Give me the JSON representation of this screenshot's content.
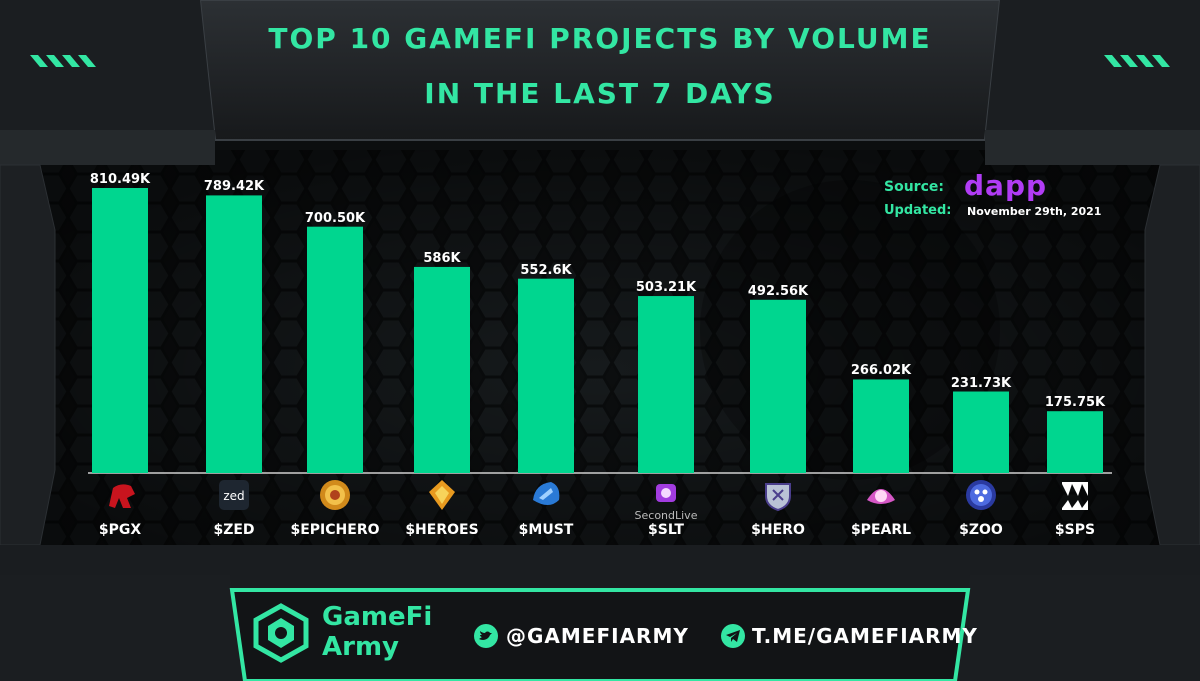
{
  "header": {
    "title_line1": "TOP 10 GAMEFI PROJECTS BY VOLUME",
    "title_line2": "IN THE LAST 7 DAYS"
  },
  "source": {
    "source_label": "Source:",
    "source_brand": "dapp",
    "updated_label": "Updated:",
    "updated_value": "November 29th, 2021"
  },
  "colors": {
    "accent": "#33e6a3",
    "bar": "#00d68f",
    "background": "#101214",
    "brand": "#a020f0"
  },
  "chart_data": {
    "type": "bar",
    "title": "TOP 10 GAMEFI PROJECTS BY VOLUME IN THE LAST 7 DAYS",
    "categories": [
      "$PGX",
      "$ZED",
      "$EPICHERO",
      "$HEROES",
      "$MUST",
      "$SLT",
      "$HERO",
      "$PEARL",
      "$ZOO",
      "$SPS"
    ],
    "values": [
      810.49,
      789.42,
      700.5,
      586,
      552.6,
      503.21,
      492.56,
      266.02,
      231.73,
      175.75
    ],
    "data_labels": [
      "810.49K",
      "789.42K",
      "700.50K",
      "586K",
      "552.6K",
      "503.21K",
      "492.56K",
      "266.02K",
      "231.73K",
      "175.75K"
    ],
    "icons": [
      "pgx-icon",
      "zed-icon",
      "epichero-icon",
      "heroes-icon",
      "must-icon",
      "slt-icon",
      "hero-icon",
      "pearl-icon",
      "zoo-icon",
      "sps-icon"
    ],
    "icon_text": {
      "zed": "zed",
      "slt": "SecondLive"
    },
    "xlabel": "",
    "ylabel": "",
    "ylim": [
      0,
      850
    ],
    "grid": false,
    "legend": "none"
  },
  "footer": {
    "brand_line1": "GameFi",
    "brand_line2": "Army",
    "twitter_handle": "@GAMEFIARMY",
    "telegram_link": "T.ME/GAMEFIARMY"
  }
}
